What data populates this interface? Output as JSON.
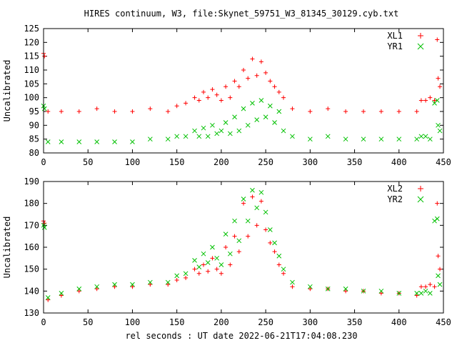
{
  "title": "HIRES continuum, W3, file:Skynet_59751_W3_81345_30129.cyb.txt",
  "xlabel": "rel seconds : UT date 2022-06-21T17:04:08.230",
  "colors": {
    "red": "#ff0000",
    "green": "#00c000"
  },
  "chart_data": [
    {
      "type": "scatter",
      "ylabel": "Uncalibrated",
      "xlim": [
        0,
        450
      ],
      "ylim": [
        80,
        125
      ],
      "xticks": [
        "0",
        "50",
        "100",
        "150",
        "200",
        "250",
        "300",
        "350",
        "400",
        "450"
      ],
      "yticks": [
        "80",
        "85",
        "90",
        "95",
        "100",
        "105",
        "110",
        "115",
        "120",
        "125"
      ],
      "legend_position": "top-right",
      "series": [
        {
          "name": "XL1",
          "color": "#ff0000",
          "marker": "plus",
          "x": [
            0,
            1,
            5,
            20,
            40,
            60,
            80,
            100,
            120,
            140,
            150,
            160,
            170,
            175,
            180,
            185,
            190,
            195,
            200,
            205,
            210,
            215,
            220,
            225,
            230,
            235,
            240,
            245,
            250,
            255,
            260,
            265,
            270,
            280,
            300,
            320,
            340,
            360,
            380,
            400,
            420,
            425,
            430,
            435,
            440,
            443,
            444,
            446
          ],
          "y": [
            116,
            115,
            95,
            95,
            95,
            96,
            95,
            95,
            96,
            95,
            97,
            98,
            100,
            99,
            102,
            100,
            103,
            101,
            99,
            104,
            100,
            106,
            104,
            110,
            107,
            114,
            108,
            113,
            109,
            106,
            104,
            102,
            100,
            96,
            95,
            96,
            95,
            95,
            95,
            95,
            95,
            99,
            99,
            100,
            99,
            121,
            107,
            104
          ]
        },
        {
          "name": "YR1",
          "color": "#00c000",
          "marker": "cross",
          "x": [
            0,
            1,
            5,
            20,
            40,
            60,
            80,
            100,
            120,
            140,
            150,
            160,
            170,
            175,
            180,
            185,
            190,
            195,
            200,
            205,
            210,
            215,
            220,
            225,
            230,
            235,
            240,
            245,
            250,
            255,
            260,
            265,
            270,
            280,
            300,
            320,
            340,
            360,
            380,
            400,
            420,
            425,
            430,
            435,
            440,
            443,
            444,
            446
          ],
          "y": [
            97,
            96,
            84,
            84,
            84,
            84,
            84,
            84,
            85,
            85,
            86,
            86,
            88,
            86,
            89,
            86,
            90,
            87,
            88,
            91,
            87,
            93,
            88,
            96,
            90,
            98,
            92,
            99,
            93,
            97,
            91,
            95,
            88,
            86,
            85,
            86,
            85,
            85,
            85,
            85,
            85,
            86,
            86,
            85,
            98,
            99,
            90,
            88
          ]
        }
      ]
    },
    {
      "type": "scatter",
      "ylabel": "Uncalibrated",
      "xlim": [
        0,
        450
      ],
      "ylim": [
        130,
        190
      ],
      "xticks": [
        "0",
        "50",
        "100",
        "150",
        "200",
        "250",
        "300",
        "350",
        "400",
        "450"
      ],
      "yticks": [
        "130",
        "140",
        "150",
        "160",
        "170",
        "180",
        "190"
      ],
      "legend_position": "top-right",
      "series": [
        {
          "name": "XL2",
          "color": "#ff0000",
          "marker": "plus",
          "x": [
            0,
            1,
            5,
            20,
            40,
            60,
            80,
            100,
            120,
            140,
            150,
            160,
            170,
            175,
            180,
            185,
            190,
            195,
            200,
            205,
            210,
            215,
            220,
            225,
            230,
            235,
            240,
            245,
            250,
            255,
            260,
            265,
            270,
            280,
            300,
            320,
            340,
            360,
            380,
            400,
            420,
            425,
            430,
            435,
            440,
            443,
            444,
            446
          ],
          "y": [
            172,
            171,
            136,
            138,
            140,
            141,
            142,
            142,
            143,
            143,
            145,
            146,
            150,
            148,
            152,
            149,
            155,
            150,
            148,
            160,
            152,
            165,
            158,
            180,
            165,
            183,
            170,
            181,
            168,
            162,
            158,
            152,
            148,
            142,
            141,
            141,
            140,
            140,
            139,
            139,
            138,
            142,
            142,
            143,
            142,
            180,
            156,
            150
          ]
        },
        {
          "name": "YR2",
          "color": "#00c000",
          "marker": "cross",
          "x": [
            0,
            1,
            5,
            20,
            40,
            60,
            80,
            100,
            120,
            140,
            150,
            160,
            170,
            175,
            180,
            185,
            190,
            195,
            200,
            205,
            210,
            215,
            220,
            225,
            230,
            235,
            240,
            245,
            250,
            255,
            260,
            265,
            270,
            280,
            300,
            320,
            340,
            360,
            380,
            400,
            420,
            425,
            430,
            435,
            440,
            443,
            444,
            446
          ],
          "y": [
            170,
            169,
            137,
            139,
            141,
            142,
            143,
            143,
            144,
            144,
            147,
            148,
            154,
            151,
            157,
            153,
            160,
            155,
            152,
            166,
            157,
            172,
            163,
            182,
            172,
            186,
            178,
            185,
            176,
            168,
            162,
            156,
            150,
            144,
            142,
            141,
            141,
            140,
            140,
            139,
            139,
            139,
            140,
            139,
            172,
            173,
            147,
            143
          ]
        }
      ]
    }
  ]
}
